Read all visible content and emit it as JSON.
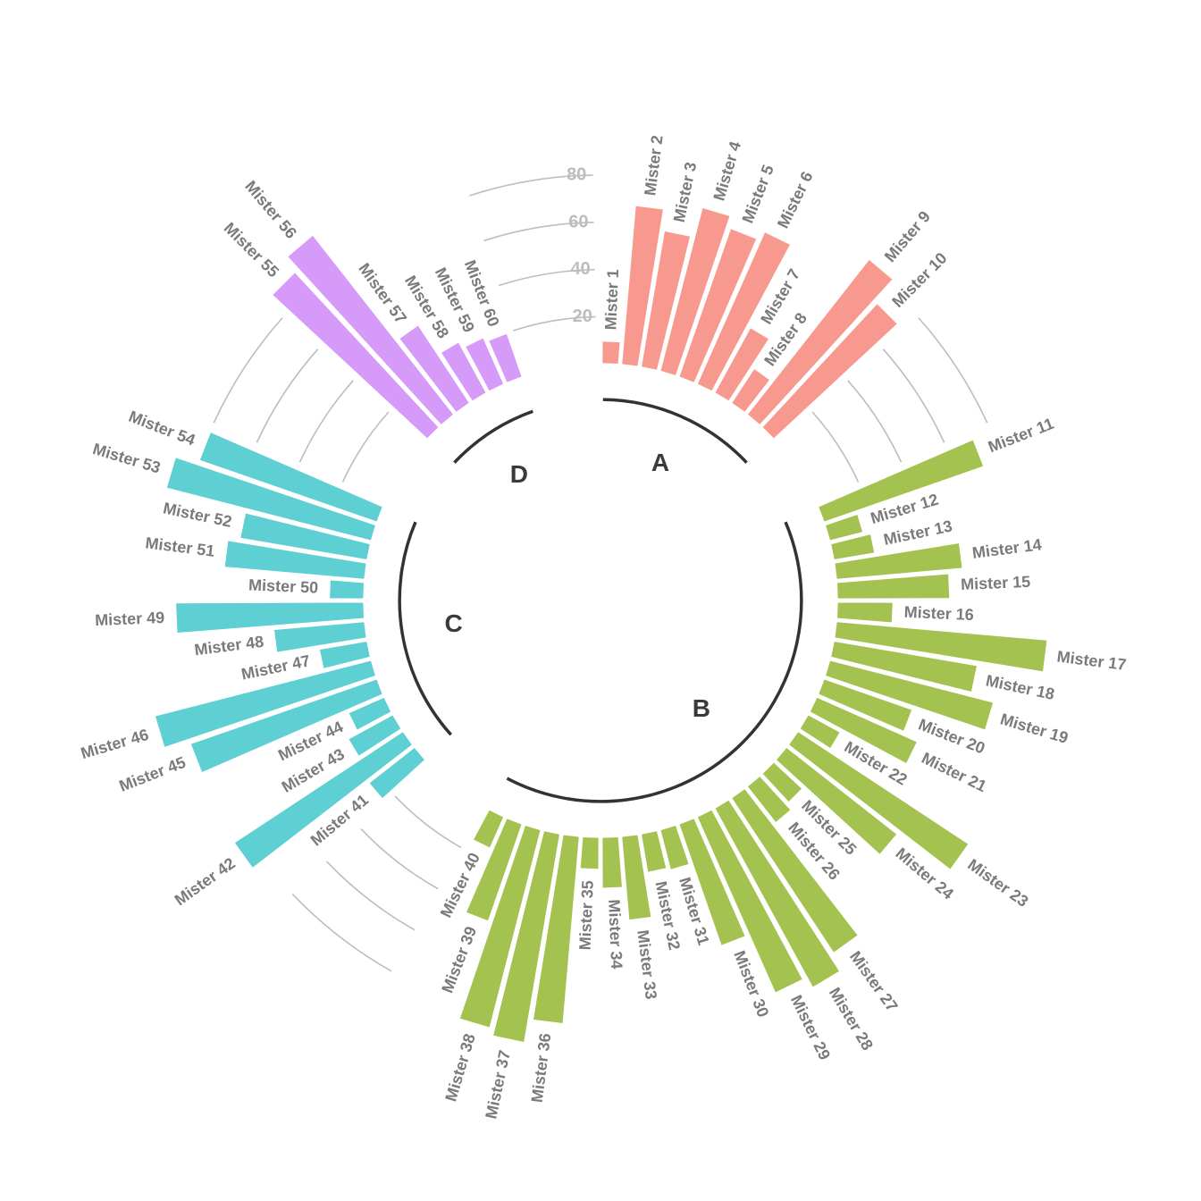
{
  "chart_data": {
    "type": "bar",
    "layout": "circular",
    "grid": true,
    "ticks": [
      20,
      40,
      60,
      80
    ],
    "ylim": [
      -100,
      120
    ],
    "colors": {
      "A": "#F8998F",
      "B": "#A3C24F",
      "C": "#5ECFD2",
      "D": "#D69BF8"
    },
    "groups": [
      {
        "name": "A",
        "bars": [
          {
            "label": "Mister 1",
            "value": 10
          },
          {
            "label": "Mister 2",
            "value": 68
          },
          {
            "label": "Mister 3",
            "value": 59
          },
          {
            "label": "Mister 4",
            "value": 72
          },
          {
            "label": "Mister 5",
            "value": 67
          },
          {
            "label": "Mister 6",
            "value": 71
          },
          {
            "label": "Mister 7",
            "value": 32
          },
          {
            "label": "Mister 8",
            "value": 18
          },
          {
            "label": "Mister 9",
            "value": 84
          },
          {
            "label": "Mister 10",
            "value": 72
          }
        ]
      },
      {
        "name": "B",
        "bars": [
          {
            "label": "Mister 11",
            "value": 72
          },
          {
            "label": "Mister 12",
            "value": 15
          },
          {
            "label": "Mister 13",
            "value": 18
          },
          {
            "label": "Mister 14",
            "value": 54
          },
          {
            "label": "Mister 15",
            "value": 48
          },
          {
            "label": "Mister 16",
            "value": 24
          },
          {
            "label": "Mister 17",
            "value": 90
          },
          {
            "label": "Mister 18",
            "value": 62
          },
          {
            "label": "Mister 19",
            "value": 72
          },
          {
            "label": "Mister 20",
            "value": 40
          },
          {
            "label": "Mister 21",
            "value": 47
          },
          {
            "label": "Mister 22",
            "value": 16
          },
          {
            "label": "Mister 23",
            "value": 87
          },
          {
            "label": "Mister 24",
            "value": 60
          },
          {
            "label": "Mister 25",
            "value": 17
          },
          {
            "label": "Mister 26",
            "value": 20
          },
          {
            "label": "Mister 27",
            "value": 79
          },
          {
            "label": "Mister 28",
            "value": 87
          },
          {
            "label": "Mister 29",
            "value": 82
          },
          {
            "label": "Mister 30",
            "value": 55
          },
          {
            "label": "Mister 31",
            "value": 18
          },
          {
            "label": "Mister 32",
            "value": 17
          },
          {
            "label": "Mister 33",
            "value": 36
          },
          {
            "label": "Mister 34",
            "value": 22
          },
          {
            "label": "Mister 35",
            "value": 14
          },
          {
            "label": "Mister 36",
            "value": 80
          },
          {
            "label": "Mister 37",
            "value": 90
          },
          {
            "label": "Mister 38",
            "value": 87
          },
          {
            "label": "Mister 39",
            "value": 44
          },
          {
            "label": "Mister 40",
            "value": 15
          }
        ]
      },
      {
        "name": "C",
        "bars": [
          {
            "label": "Mister 41",
            "value": 25
          },
          {
            "label": "Mister 42",
            "value": 86
          },
          {
            "label": "Mister 43",
            "value": 22
          },
          {
            "label": "Mister 44",
            "value": 17
          },
          {
            "label": "Mister 45",
            "value": 84
          },
          {
            "label": "Mister 46",
            "value": 95
          },
          {
            "label": "Mister 47",
            "value": 21
          },
          {
            "label": "Mister 48",
            "value": 39
          },
          {
            "label": "Mister 49",
            "value": 80
          },
          {
            "label": "Mister 50",
            "value": 15
          },
          {
            "label": "Mister 51",
            "value": 60
          },
          {
            "label": "Mister 52",
            "value": 55
          },
          {
            "label": "Mister 53",
            "value": 90
          },
          {
            "label": "Mister 54",
            "value": 80
          }
        ]
      },
      {
        "name": "D",
        "bars": [
          {
            "label": "Mister 55",
            "value": 90
          },
          {
            "label": "Mister 56",
            "value": 97
          },
          {
            "label": "Mister 57",
            "value": 40
          },
          {
            "label": "Mister 58",
            "value": 25
          },
          {
            "label": "Mister 59",
            "value": 22
          },
          {
            "label": "Mister 60",
            "value": 20
          }
        ]
      }
    ]
  }
}
